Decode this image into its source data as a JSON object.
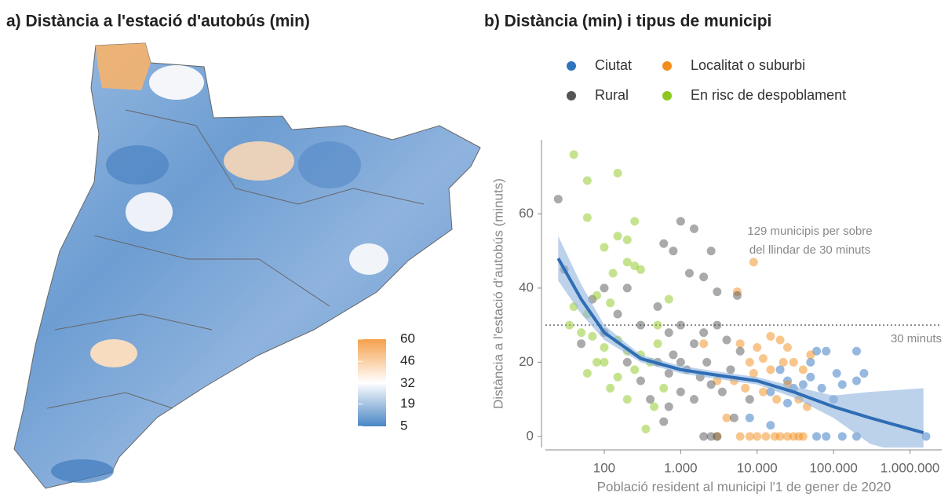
{
  "panel_a": {
    "title": "a) Distància a l'estació d'autobús (min)",
    "legend": {
      "lim": [
        5,
        60
      ],
      "ticks": [
        60,
        46,
        32,
        19,
        5
      ],
      "colors": [
        "#4a86c5",
        "#ffffff",
        "#f6a04d"
      ]
    }
  },
  "chart_data": {
    "type": "scatter",
    "title": "b) Distància (min) i tipus de municipi",
    "xlabel": "Població resident al municipi l'1 de gener de 2020",
    "ylabel": "Distància a l'estació d'autobús (minuts)",
    "log_x": true,
    "xlim": [
      17,
      2600000
    ],
    "ylim": [
      -3,
      80
    ],
    "xticks": [
      100,
      {
        "value": 1000,
        "label": "1.000"
      },
      {
        "value": 10000,
        "label": "10.000"
      },
      {
        "value": 100000,
        "label": "100.000"
      },
      {
        "value": 1000000,
        "label": "1.000.000"
      }
    ],
    "yticks": [
      0,
      20,
      40,
      60
    ],
    "series": [
      {
        "name": "Ciutat",
        "color": "#2f74bf",
        "x": [
          60000,
          50000,
          80000,
          200000,
          250000,
          200000,
          130000,
          70000,
          40000,
          30000,
          20000,
          25000,
          15000,
          100000,
          60000,
          80000,
          130000,
          200000,
          1620000,
          50000,
          110000,
          25000,
          15000,
          8000
        ],
        "values": [
          23,
          20,
          23,
          23,
          17,
          15,
          14,
          13,
          14,
          13,
          18,
          15,
          12,
          10,
          0,
          0,
          0,
          0,
          0,
          16,
          17,
          9,
          3,
          5
        ]
      },
      {
        "name": "Localitat o suburbi",
        "color": "#f28e1c",
        "x": [
          9000,
          5500,
          10000,
          15000,
          20000,
          25000,
          30000,
          12000,
          8000,
          6000,
          7000,
          12000,
          18000,
          25000,
          40000,
          35000,
          5000,
          9000,
          15000,
          22000,
          6000,
          8000,
          10000,
          13000,
          17000,
          20000,
          25000,
          30000,
          35000,
          40000,
          3000,
          4000,
          3000,
          2000,
          50000,
          45000
        ],
        "values": [
          47,
          39,
          24,
          27,
          26,
          24,
          20,
          21,
          20,
          25,
          13,
          12,
          10,
          14,
          18,
          10,
          15,
          17,
          18,
          20,
          0,
          0,
          0,
          0,
          0,
          0,
          0,
          0,
          0,
          0,
          0,
          5,
          15,
          25,
          22,
          8
        ]
      },
      {
        "name": "Rural",
        "color": "#555555",
        "x": [
          25,
          1000,
          1500,
          2500,
          800,
          600,
          1300,
          2000,
          3000,
          5500,
          200,
          100,
          70,
          150,
          300,
          500,
          700,
          1000,
          1500,
          2000,
          3000,
          4000,
          6000,
          500,
          800,
          1200,
          1800,
          2500,
          3500,
          1000,
          700,
          400,
          300,
          200,
          1500,
          2000,
          2500,
          3000,
          5000,
          8000,
          600,
          100,
          50,
          1000,
          700,
          2200,
          4500,
          30
        ],
        "values": [
          64,
          58,
          56,
          50,
          50,
          52,
          44,
          43,
          39,
          38,
          40,
          40,
          37,
          33,
          30,
          35,
          28,
          30,
          25,
          28,
          30,
          26,
          23,
          20,
          22,
          18,
          16,
          14,
          12,
          12,
          8,
          10,
          15,
          20,
          10,
          0,
          0,
          0,
          5,
          10,
          4,
          28,
          25,
          20,
          17,
          20,
          18,
          45
        ]
      },
      {
        "name": "En risc de despoblament",
        "color": "#8cc81e",
        "x": [
          40,
          150,
          60,
          60,
          250,
          150,
          200,
          100,
          130,
          200,
          250,
          300,
          40,
          60,
          80,
          120,
          35,
          50,
          70,
          100,
          150,
          200,
          300,
          400,
          500,
          250,
          150,
          100,
          60,
          80,
          120,
          200,
          350,
          450,
          600,
          500,
          700
        ],
        "values": [
          76,
          71,
          69,
          59,
          58,
          54,
          53,
          51,
          44,
          47,
          46,
          45,
          35,
          33,
          38,
          36,
          30,
          28,
          27,
          24,
          26,
          23,
          22,
          20,
          25,
          18,
          16,
          20,
          17,
          20,
          13,
          10,
          2,
          8,
          13,
          30,
          37
        ]
      }
    ],
    "trend": {
      "color": "#2f6db5",
      "band_color": "#8fb4de",
      "x": [
        25,
        50,
        100,
        300,
        1000,
        3000,
        10000,
        30000,
        100000,
        300000,
        1500000
      ],
      "values": [
        48,
        37,
        28,
        21,
        18,
        16.5,
        15,
        12,
        8,
        5,
        1
      ],
      "lower": [
        42,
        33,
        26,
        20,
        17,
        15.5,
        14,
        10.5,
        5,
        -2,
        -6
      ],
      "upper": [
        54,
        41,
        30,
        22,
        19,
        17.5,
        16,
        13.5,
        11,
        12,
        13
      ]
    },
    "threshold": {
      "value": 30,
      "label": "30 minuts"
    },
    "annotation": [
      "129 municipis per sobre",
      "del llindar de 30 minuts"
    ]
  }
}
